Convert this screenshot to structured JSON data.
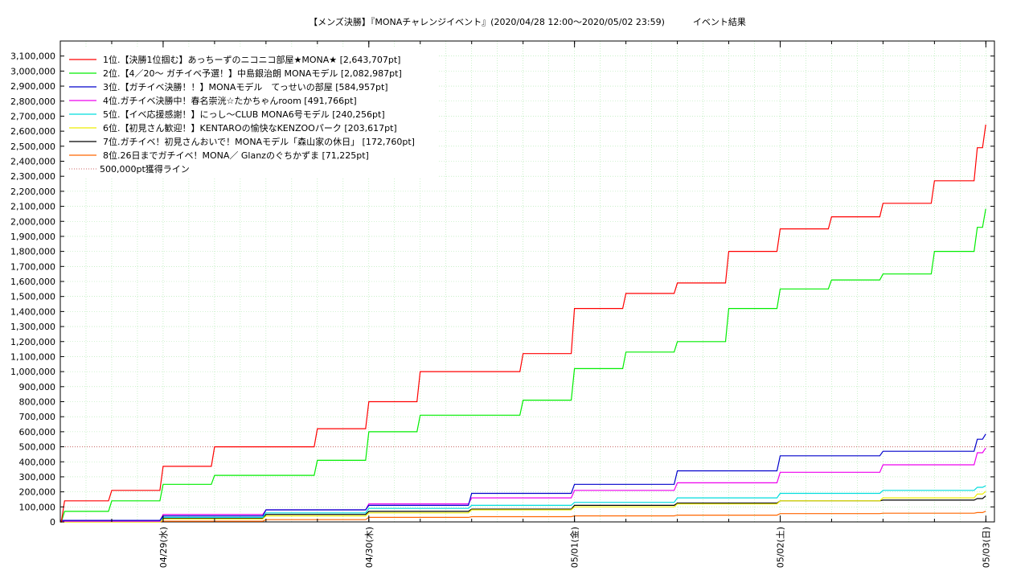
{
  "chart_data": {
    "type": "line",
    "title": "【メンズ決勝】『MONAチャレンジイベント』(2020/04/28 12:00〜2020/05/02 23:59)          イベント結果",
    "xlabel": "",
    "ylabel": "",
    "x_ticks": [
      "04/29(水)",
      "04/30(木)",
      "05/01(金)",
      "05/02(土)",
      "05/03(日)"
    ],
    "x_tick_dates": [
      "2020-04-29",
      "2020-04-30",
      "2020-05-01",
      "2020-05-02",
      "2020-05-03"
    ],
    "x_range": [
      "2020-04-28 12:00",
      "2020-05-03 01:00"
    ],
    "ylim": [
      0,
      3200000
    ],
    "y_ticks": [
      0,
      100000,
      200000,
      300000,
      400000,
      500000,
      600000,
      700000,
      800000,
      900000,
      1000000,
      1100000,
      1200000,
      1300000,
      1400000,
      1500000,
      1600000,
      1700000,
      1800000,
      1900000,
      2000000,
      2100000,
      2200000,
      2300000,
      2400000,
      2500000,
      2600000,
      2700000,
      2800000,
      2900000,
      3000000,
      3100000
    ],
    "y_tick_labels": [
      "0",
      "100,000",
      "200,000",
      "300,000",
      "400,000",
      "500,000",
      "600,000",
      "700,000",
      "800,000",
      "900,000",
      "1,000,000",
      "1,100,000",
      "1,200,000",
      "1,300,000",
      "1,400,000",
      "1,500,000",
      "1,600,000",
      "1,700,000",
      "1,800,000",
      "1,900,000",
      "2,000,000",
      "2,100,000",
      "2,200,000",
      "2,300,000",
      "2,400,000",
      "2,500,000",
      "2,600,000",
      "2,700,000",
      "2,800,000",
      "2,900,000",
      "3,000,000",
      "3,100,000"
    ],
    "grid": true,
    "legend_position": "top-left",
    "reference_line": {
      "label": "500,000pt獲得ライン",
      "value": 500000,
      "color": "#cc6666"
    },
    "series": [
      {
        "name": "1位.【決勝1位掴む】あっちーずのニコニコ部屋★MONA★ [2,643,707pt]",
        "color": "#ff0000",
        "x": [
          "2020-04-28 12:00",
          "2020-04-28 12:30",
          "2020-04-28 18:00",
          "2020-04-29 00:00",
          "2020-04-29 06:00",
          "2020-04-29 12:00",
          "2020-04-29 18:00",
          "2020-04-30 00:00",
          "2020-04-30 06:00",
          "2020-04-30 12:00",
          "2020-04-30 18:00",
          "2020-05-01 00:00",
          "2020-05-01 06:00",
          "2020-05-01 12:00",
          "2020-05-01 18:00",
          "2020-05-02 00:00",
          "2020-05-02 06:00",
          "2020-05-02 12:00",
          "2020-05-02 18:00",
          "2020-05-02 23:00",
          "2020-05-02 23:59"
        ],
        "values": [
          0,
          140000,
          210000,
          370000,
          500000,
          500000,
          620000,
          800000,
          1000000,
          1000000,
          1120000,
          1420000,
          1520000,
          1590000,
          1800000,
          1950000,
          2030000,
          2120000,
          2270000,
          2490000,
          2643707
        ]
      },
      {
        "name": "2位.【4／20〜 ガチイベ予選！】中島銀治朗 MONAモデル [2,082,987pt]",
        "color": "#00ee00",
        "x": [
          "2020-04-28 12:00",
          "2020-04-28 12:30",
          "2020-04-28 18:00",
          "2020-04-29 00:00",
          "2020-04-29 06:00",
          "2020-04-29 12:00",
          "2020-04-29 18:00",
          "2020-04-30 00:00",
          "2020-04-30 06:00",
          "2020-04-30 12:00",
          "2020-04-30 18:00",
          "2020-05-01 00:00",
          "2020-05-01 06:00",
          "2020-05-01 12:00",
          "2020-05-01 18:00",
          "2020-05-02 00:00",
          "2020-05-02 06:00",
          "2020-05-02 12:00",
          "2020-05-02 18:00",
          "2020-05-02 23:00",
          "2020-05-02 23:59"
        ],
        "values": [
          0,
          70000,
          140000,
          250000,
          310000,
          310000,
          410000,
          600000,
          710000,
          710000,
          810000,
          1020000,
          1130000,
          1200000,
          1420000,
          1550000,
          1610000,
          1650000,
          1800000,
          1960000,
          2082987
        ]
      },
      {
        "name": "3位.【ガチイベ決勝！！】MONAモデル　てっせいの部屋 [584,957pt]",
        "color": "#0000cc",
        "x": [
          "2020-04-28 12:00",
          "2020-04-29 00:00",
          "2020-04-29 12:00",
          "2020-04-30 00:00",
          "2020-04-30 12:00",
          "2020-05-01 00:00",
          "2020-05-01 12:00",
          "2020-05-02 00:00",
          "2020-05-02 12:00",
          "2020-05-02 23:00",
          "2020-05-02 23:59"
        ],
        "values": [
          10000,
          40000,
          80000,
          110000,
          190000,
          250000,
          340000,
          440000,
          470000,
          550000,
          584957
        ]
      },
      {
        "name": "4位.ガチイベ決勝中！春名崇洸☆たかちゃんroom [491,766pt]",
        "color": "#ee00ee",
        "x": [
          "2020-04-28 12:00",
          "2020-04-29 00:00",
          "2020-04-29 12:00",
          "2020-04-30 00:00",
          "2020-04-30 12:00",
          "2020-05-01 00:00",
          "2020-05-01 12:00",
          "2020-05-02 00:00",
          "2020-05-02 12:00",
          "2020-05-02 23:00",
          "2020-05-02 23:59"
        ],
        "values": [
          5000,
          50000,
          80000,
          120000,
          160000,
          210000,
          260000,
          330000,
          380000,
          460000,
          491766
        ]
      },
      {
        "name": "5位.【イベ応援感謝！】にっし〜CLUB MONA6号モデル [240,256pt]",
        "color": "#00dddd",
        "x": [
          "2020-04-28 12:00",
          "2020-04-29 00:00",
          "2020-04-29 12:00",
          "2020-04-30 00:00",
          "2020-04-30 12:00",
          "2020-05-01 00:00",
          "2020-05-01 12:00",
          "2020-05-02 00:00",
          "2020-05-02 12:00",
          "2020-05-02 23:00",
          "2020-05-02 23:59"
        ],
        "values": [
          5000,
          30000,
          60000,
          90000,
          110000,
          130000,
          160000,
          190000,
          210000,
          230000,
          240256
        ]
      },
      {
        "name": "6位.【初見さん歓迎！】KENTAROの愉快なKENZOOパーク [203,617pt]",
        "color": "#eeee00",
        "x": [
          "2020-04-28 12:00",
          "2020-04-29 00:00",
          "2020-04-29 12:00",
          "2020-04-30 00:00",
          "2020-04-30 12:00",
          "2020-05-01 00:00",
          "2020-05-01 12:00",
          "2020-05-02 00:00",
          "2020-05-02 12:00",
          "2020-05-02 23:00",
          "2020-05-02 23:59"
        ],
        "values": [
          0,
          20000,
          40000,
          60000,
          80000,
          100000,
          120000,
          140000,
          160000,
          185000,
          203617
        ]
      },
      {
        "name": "7位.ガチイベ！初見さんおいで！MONAモデル「森山家の休日」 [172,760pt]",
        "color": "#000000",
        "x": [
          "2020-04-28 12:00",
          "2020-04-29 00:00",
          "2020-04-29 12:00",
          "2020-04-30 00:00",
          "2020-04-30 12:00",
          "2020-05-01 00:00",
          "2020-05-01 12:00",
          "2020-05-02 00:00",
          "2020-05-02 12:00",
          "2020-05-02 23:00",
          "2020-05-02 23:59"
        ],
        "values": [
          5000,
          25000,
          50000,
          70000,
          85000,
          110000,
          125000,
          140000,
          145000,
          155000,
          172760
        ]
      },
      {
        "name": "8位.26日までガチイベ！MONA／ Glanzのぐちかずま [71,225pt]",
        "color": "#ff6600",
        "x": [
          "2020-04-28 12:00",
          "2020-04-29 00:00",
          "2020-04-29 12:00",
          "2020-04-30 00:00",
          "2020-04-30 12:00",
          "2020-05-01 00:00",
          "2020-05-01 12:00",
          "2020-05-02 00:00",
          "2020-05-02 12:00",
          "2020-05-02 23:00",
          "2020-05-02 23:59"
        ],
        "values": [
          0,
          5000,
          15000,
          30000,
          35000,
          40000,
          45000,
          55000,
          58000,
          62000,
          71225
        ]
      }
    ]
  }
}
